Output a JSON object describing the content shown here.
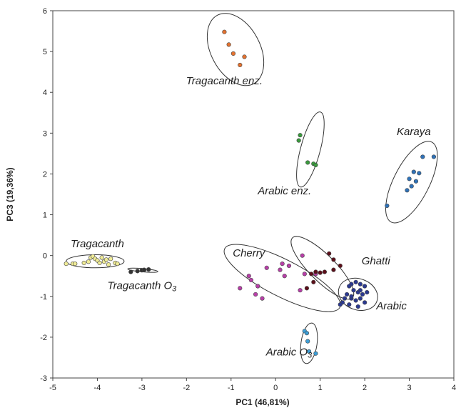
{
  "chart_data": {
    "type": "scatter",
    "xlabel": "PC1 (46,81%)",
    "ylabel": "PC3 (19,36%)",
    "xlim": [
      -5,
      4
    ],
    "ylim": [
      -3,
      6
    ],
    "xticks": [
      "-5",
      "-4",
      "-3",
      "-2",
      "-1",
      "0",
      "1",
      "2",
      "3",
      "4"
    ],
    "yticks": [
      "-3",
      "-2",
      "-1",
      "0",
      "1",
      "2",
      "3",
      "4",
      "5",
      "6"
    ],
    "grid": false,
    "legend": "none",
    "series": [
      {
        "label": "Tragacanth enz.",
        "color": "#e4722f",
        "points": [
          [
            -1.15,
            5.48
          ],
          [
            -1.05,
            5.17
          ],
          [
            -0.95,
            4.95
          ],
          [
            -0.7,
            4.87
          ],
          [
            -0.8,
            4.67
          ]
        ],
        "ellipse": {
          "cx": -0.9,
          "cy": 5.05,
          "rx": 0.55,
          "ry": 0.95,
          "angle": -28
        }
      },
      {
        "label": "Karaya",
        "color": "#2f72b8",
        "points": [
          [
            3.3,
            2.42
          ],
          [
            3.55,
            2.42
          ],
          [
            3.1,
            2.05
          ],
          [
            3.22,
            2.02
          ],
          [
            3.0,
            1.88
          ],
          [
            3.15,
            1.82
          ],
          [
            3.05,
            1.7
          ],
          [
            2.95,
            1.6
          ],
          [
            2.5,
            1.22
          ]
        ],
        "ellipse": {
          "cx": 3.05,
          "cy": 1.8,
          "rx": 0.4,
          "ry": 1.1,
          "angle": 27
        }
      },
      {
        "label": "Arabic enz.",
        "color": "#3a9a3e",
        "points": [
          [
            0.55,
            2.95
          ],
          [
            0.52,
            2.82
          ],
          [
            0.72,
            2.28
          ],
          [
            0.85,
            2.25
          ],
          [
            0.9,
            2.22
          ]
        ],
        "ellipse": {
          "cx": 0.78,
          "cy": 2.6,
          "rx": 0.22,
          "ry": 0.95,
          "angle": 15
        }
      },
      {
        "label": "Tragacanth",
        "color": "#efeb96",
        "points": [
          [
            -4.7,
            -0.2
          ],
          [
            -4.55,
            -0.2
          ],
          [
            -4.5,
            -0.2
          ],
          [
            -4.3,
            -0.18
          ],
          [
            -4.15,
            -0.05
          ],
          [
            -4.1,
            -0.02
          ],
          [
            -4.05,
            -0.08
          ],
          [
            -4.0,
            -0.12
          ],
          [
            -3.95,
            -0.18
          ],
          [
            -3.85,
            -0.15
          ],
          [
            -3.8,
            -0.1
          ],
          [
            -3.75,
            -0.22
          ],
          [
            -3.7,
            -0.08
          ],
          [
            -3.6,
            -0.18
          ],
          [
            -3.55,
            -0.2
          ],
          [
            -3.9,
            -0.05
          ],
          [
            -4.2,
            -0.15
          ]
        ],
        "ellipse": {
          "cx": -4.05,
          "cy": -0.14,
          "rx": 0.65,
          "ry": 0.16,
          "angle": 0
        }
      },
      {
        "label": "Tragacanth O3",
        "color": "#333333",
        "points": [
          [
            -3.25,
            -0.4
          ],
          [
            -3.1,
            -0.38
          ],
          [
            -3.0,
            -0.36
          ],
          [
            -2.95,
            -0.35
          ],
          [
            -2.85,
            -0.34
          ]
        ],
        "ellipse": {
          "cx": -2.98,
          "cy": -0.36,
          "rx": 0.34,
          "ry": 0.04,
          "angle": 5
        }
      },
      {
        "label": "Cherry",
        "color": "#b83fa8",
        "points": [
          [
            -0.8,
            -0.8
          ],
          [
            -0.6,
            -0.5
          ],
          [
            -0.55,
            -0.6
          ],
          [
            -0.4,
            -0.75
          ],
          [
            -0.3,
            -1.05
          ],
          [
            -0.45,
            -0.95
          ],
          [
            -0.2,
            -0.3
          ],
          [
            0.1,
            -0.35
          ],
          [
            0.15,
            -0.2
          ],
          [
            0.2,
            -0.5
          ],
          [
            0.3,
            -0.25
          ],
          [
            0.6,
            0.0
          ],
          [
            0.65,
            -0.45
          ],
          [
            0.9,
            -0.45
          ],
          [
            0.55,
            -0.85
          ]
        ],
        "ellipse": {
          "cx": 0.15,
          "cy": -0.55,
          "rx": 1.45,
          "ry": 0.45,
          "angle": 27
        }
      },
      {
        "label": "Ghatti",
        "color": "#5c0f1a",
        "points": [
          [
            1.2,
            0.05
          ],
          [
            1.3,
            -0.1
          ],
          [
            1.45,
            -0.25
          ],
          [
            1.3,
            -0.35
          ],
          [
            1.1,
            -0.4
          ],
          [
            0.9,
            -0.4
          ],
          [
            0.8,
            -0.45
          ],
          [
            1.0,
            -0.42
          ],
          [
            0.85,
            -0.65
          ],
          [
            0.7,
            -0.8
          ]
        ],
        "ellipse": {
          "cx": 1.05,
          "cy": -0.3,
          "rx": 0.95,
          "ry": 0.32,
          "angle": 45
        }
      },
      {
        "label": "Arabic",
        "color": "#2b3990",
        "points": [
          [
            1.7,
            -0.7
          ],
          [
            1.8,
            -0.65
          ],
          [
            1.9,
            -0.7
          ],
          [
            2.0,
            -0.75
          ],
          [
            1.75,
            -0.85
          ],
          [
            1.85,
            -0.9
          ],
          [
            1.95,
            -0.95
          ],
          [
            2.05,
            -0.9
          ],
          [
            1.6,
            -0.95
          ],
          [
            1.7,
            -1.05
          ],
          [
            1.8,
            -1.1
          ],
          [
            1.9,
            -1.05
          ],
          [
            2.0,
            -1.15
          ],
          [
            1.5,
            -1.15
          ],
          [
            1.45,
            -1.2
          ],
          [
            1.65,
            -1.2
          ],
          [
            1.85,
            -1.25
          ],
          [
            1.7,
            -1.0
          ],
          [
            1.9,
            -0.85
          ],
          [
            1.65,
            -0.75
          ],
          [
            1.55,
            -1.05
          ]
        ],
        "ellipse": {
          "cx": 1.85,
          "cy": -0.95,
          "rx": 0.45,
          "ry": 0.38,
          "angle": 20
        }
      },
      {
        "label": "Arabic O3",
        "color": "#3d9ed6",
        "points": [
          [
            0.65,
            -1.85
          ],
          [
            0.7,
            -1.9
          ],
          [
            0.72,
            -2.1
          ],
          [
            0.75,
            -2.35
          ],
          [
            0.9,
            -2.4
          ]
        ],
        "ellipse": {
          "cx": 0.75,
          "cy": -2.15,
          "rx": 0.18,
          "ry": 0.5,
          "angle": 8
        }
      }
    ],
    "labels": [
      {
        "text": "Tragacanth enz.",
        "x": -1.15,
        "y": 4.2
      },
      {
        "text": "Karaya",
        "x": 3.1,
        "y": 2.95
      },
      {
        "text": "Arabic enz.",
        "x": 0.2,
        "y": 1.5
      },
      {
        "text": "Tragacanth",
        "x": -4.0,
        "y": 0.2
      },
      {
        "text": "Tragacanth O",
        "sub": "3",
        "x": -3.0,
        "y": -0.82
      },
      {
        "text": "Cherry",
        "x": -0.6,
        "y": -0.02
      },
      {
        "text": "Ghatti",
        "x": 2.25,
        "y": -0.22
      },
      {
        "text": "Arabic",
        "x": 2.6,
        "y": -1.32
      },
      {
        "text": "Arabic O",
        "sub": "3",
        "x": 0.3,
        "y": -2.45
      }
    ]
  }
}
